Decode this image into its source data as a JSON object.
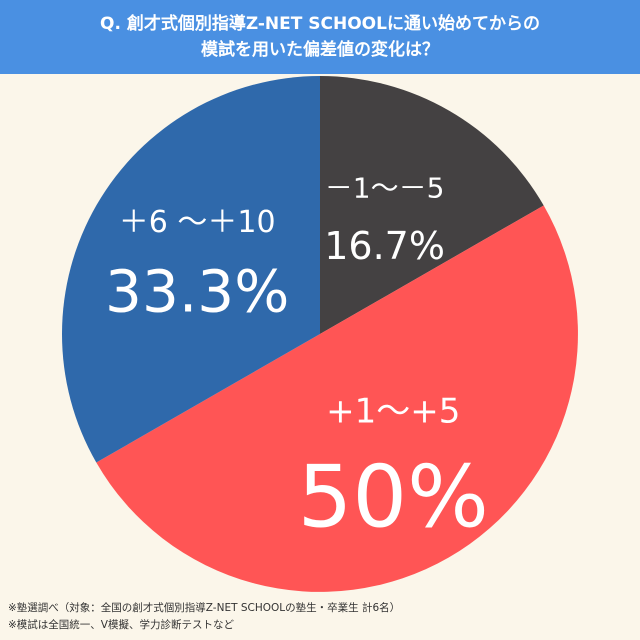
{
  "title": {
    "line1": "Q. 創才式個別指導Z-NET SCHOOLに通い始めてからの",
    "line2": "模試を用いた偏差値の変化は？"
  },
  "chart_data": {
    "type": "pie",
    "slices": [
      {
        "label": "－1～－5",
        "value": 16.7,
        "value_label": "16.7%",
        "color": "#444142"
      },
      {
        "label": "+1～+5",
        "value": 50,
        "value_label": "50%",
        "color": "#ff5555"
      },
      {
        "label": "＋6 ～＋10",
        "value": 33.3,
        "value_label": "33.3%",
        "color": "#2f69ab"
      }
    ]
  },
  "notes": {
    "line1": "※塾選調べ（対象：全国の創才式個別指導Z-NET SCHOOLの塾生・卒業生 計6名）",
    "line2": "※模試は全国統一、V模擬、学力診断テストなど"
  },
  "colors": {
    "title_background": "#4a90e2",
    "page_background": "#fbf6ea"
  }
}
